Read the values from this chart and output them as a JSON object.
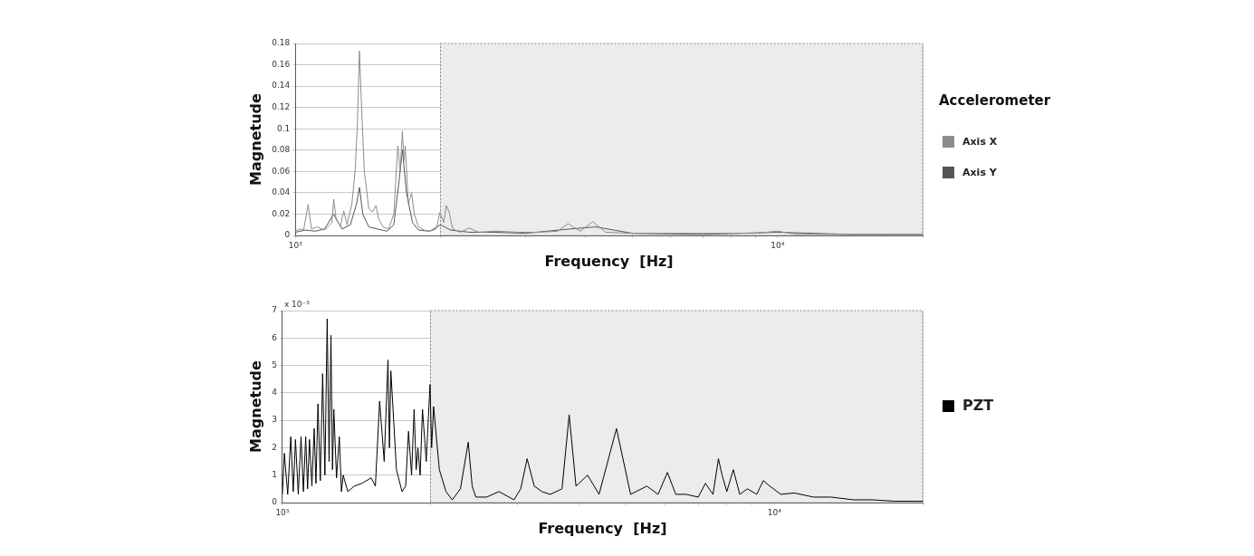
{
  "chart_data": [
    {
      "type": "line",
      "xlabel": "Frequency  [Hz]",
      "ylabel": "Magnetude",
      "legend_title": "Accelerometer",
      "legend": "right",
      "grid": true,
      "log": "x",
      "xlim": [
        1000,
        20000
      ],
      "xticks": [
        {
          "value": 1000,
          "label": "10³"
        },
        {
          "value": 2000,
          "label": null
        },
        {
          "value": 3000,
          "label": null
        },
        {
          "value": 4000,
          "label": null
        },
        {
          "value": 5000,
          "label": null
        },
        {
          "value": 6000,
          "label": null
        },
        {
          "value": 7000,
          "label": null
        },
        {
          "value": 8000,
          "label": null
        },
        {
          "value": 9000,
          "label": null
        },
        {
          "value": 10000,
          "label": "10⁴"
        },
        {
          "value": 20000,
          "label": null
        }
      ],
      "ylim": [
        0,
        0.18
      ],
      "yticks": [
        0,
        0.02,
        0.04,
        0.06,
        0.08,
        0.1,
        0.12,
        0.14,
        0.16,
        0.18
      ],
      "bands": [
        {
          "axis": "x",
          "from": 2000,
          "to": 20000,
          "color": "#ececec"
        }
      ],
      "series": [
        {
          "name": "Axis X",
          "color": "#8c8c8c",
          "x": [
            1000,
            1020,
            1040,
            1063,
            1080,
            1110,
            1150,
            1190,
            1201,
            1215,
            1240,
            1260,
            1280,
            1310,
            1330,
            1345,
            1358,
            1372,
            1390,
            1400,
            1420,
            1445,
            1469,
            1490,
            1520,
            1560,
            1600,
            1631,
            1650,
            1667,
            1680,
            1690,
            1715,
            1742,
            1765,
            1800,
            1850,
            1900,
            1960,
            1995,
            2030,
            2056,
            2084,
            2120,
            2200,
            2293,
            2400,
            2600,
            2900,
            3200,
            3500,
            3676,
            3900,
            4137,
            4400,
            5000,
            6000,
            7000,
            8000,
            9000,
            10000,
            11000,
            13000,
            16000,
            20000
          ],
          "values": [
            0.004,
            0.006,
            0.005,
            0.029,
            0.006,
            0.008,
            0.005,
            0.012,
            0.034,
            0.015,
            0.009,
            0.023,
            0.01,
            0.03,
            0.06,
            0.105,
            0.173,
            0.12,
            0.06,
            0.049,
            0.025,
            0.022,
            0.028,
            0.015,
            0.008,
            0.006,
            0.02,
            0.084,
            0.06,
            0.098,
            0.07,
            0.084,
            0.03,
            0.04,
            0.02,
            0.008,
            0.005,
            0.004,
            0.006,
            0.022,
            0.012,
            0.028,
            0.022,
            0.006,
            0.003,
            0.007,
            0.003,
            0.004,
            0.003,
            0.003,
            0.004,
            0.011,
            0.004,
            0.013,
            0.003,
            0.002,
            0.002,
            0.002,
            0.002,
            0.002,
            0.004,
            0.001,
            0.001,
            0.001,
            0.001
          ]
        },
        {
          "name": "Axis Y",
          "color": "#555555",
          "x": [
            1000,
            1050,
            1100,
            1150,
            1200,
            1250,
            1300,
            1340,
            1358,
            1380,
            1420,
            1480,
            1550,
            1600,
            1640,
            1667,
            1700,
            1750,
            1800,
            1900,
            2000,
            2100,
            2300,
            2600,
            3000,
            3700,
            4200,
            5000,
            7000,
            10000,
            14000,
            20000
          ],
          "values": [
            0.003,
            0.005,
            0.004,
            0.006,
            0.02,
            0.006,
            0.01,
            0.03,
            0.045,
            0.02,
            0.008,
            0.006,
            0.004,
            0.01,
            0.05,
            0.08,
            0.04,
            0.012,
            0.005,
            0.004,
            0.01,
            0.005,
            0.003,
            0.003,
            0.002,
            0.006,
            0.008,
            0.002,
            0.001,
            0.003,
            0.001,
            0.001
          ]
        }
      ]
    },
    {
      "type": "line",
      "xlabel": "Frequency  [Hz]",
      "ylabel": "Magnetude",
      "legend": "right",
      "grid": true,
      "log": "x",
      "annotations": [
        "x 10⁻³"
      ],
      "xlim": [
        1000,
        20000
      ],
      "xticks": [
        {
          "value": 1000,
          "label": "10³"
        },
        {
          "value": 2000,
          "label": null
        },
        {
          "value": 3000,
          "label": null
        },
        {
          "value": 4000,
          "label": null
        },
        {
          "value": 5000,
          "label": null
        },
        {
          "value": 6000,
          "label": null
        },
        {
          "value": 7000,
          "label": null
        },
        {
          "value": 8000,
          "label": null
        },
        {
          "value": 9000,
          "label": null
        },
        {
          "value": 10000,
          "label": "10⁴"
        },
        {
          "value": 20000,
          "label": null
        }
      ],
      "ylim": [
        0,
        7
      ],
      "yticks": [
        0,
        1,
        2,
        3,
        4,
        5,
        6,
        7
      ],
      "bands": [
        {
          "axis": "x",
          "from": 2000,
          "to": 20000,
          "color": "#ececec"
        }
      ],
      "series": [
        {
          "name": "PZT",
          "color": "#000000",
          "x": [
            1000,
            1009,
            1025,
            1040,
            1052,
            1063,
            1077,
            1091,
            1103,
            1115,
            1125,
            1135,
            1148,
            1160,
            1170,
            1181,
            1194,
            1207,
            1220,
            1233,
            1244,
            1255,
            1264,
            1272,
            1288,
            1305,
            1318,
            1329,
            1358,
            1400,
            1450,
            1515,
            1545,
            1576,
            1610,
            1639,
            1650,
            1661,
            1705,
            1750,
            1780,
            1804,
            1830,
            1852,
            1870,
            1885,
            1905,
            1926,
            1960,
            1995,
            2010,
            2029,
            2084,
            2150,
            2214,
            2300,
            2386,
            2430,
            2472,
            2600,
            2755,
            2955,
            3050,
            3142,
            3250,
            3368,
            3500,
            3700,
            3826,
            3950,
            4170,
            4400,
            4774,
            5100,
            5503,
            5800,
            6059,
            6300,
            6613,
            7000,
            7237,
            7500,
            7693,
            7826,
            8000,
            8248,
            8500,
            8810,
            9200,
            9489,
            9784,
            10300,
            10970,
            12000,
            13010,
            14500,
            15830,
            17500,
            19230,
            20000
          ],
          "values": [
            0.3,
            1.8,
            0.3,
            2.4,
            0.4,
            2.3,
            0.3,
            2.4,
            0.4,
            2.4,
            0.5,
            2.3,
            0.6,
            2.7,
            0.7,
            3.6,
            0.8,
            4.7,
            1.0,
            6.7,
            1.5,
            6.1,
            1.2,
            3.4,
            0.9,
            2.4,
            0.4,
            1.0,
            0.4,
            0.6,
            0.7,
            0.9,
            0.6,
            3.7,
            1.5,
            5.2,
            2.0,
            4.8,
            1.2,
            0.4,
            0.6,
            2.6,
            1.0,
            3.4,
            1.2,
            2.0,
            1.0,
            3.4,
            1.5,
            4.3,
            2.0,
            3.5,
            1.2,
            0.4,
            0.1,
            0.5,
            2.2,
            0.6,
            0.2,
            0.2,
            0.4,
            0.1,
            0.5,
            1.6,
            0.6,
            0.4,
            0.3,
            0.5,
            3.2,
            0.6,
            1.0,
            0.3,
            2.7,
            0.3,
            0.6,
            0.3,
            1.1,
            0.3,
            0.3,
            0.2,
            0.7,
            0.3,
            1.6,
            1.0,
            0.4,
            1.2,
            0.3,
            0.5,
            0.3,
            0.8,
            0.6,
            0.3,
            0.35,
            0.2,
            0.2,
            0.1,
            0.1,
            0.05,
            0.05,
            0.05
          ]
        }
      ]
    }
  ]
}
